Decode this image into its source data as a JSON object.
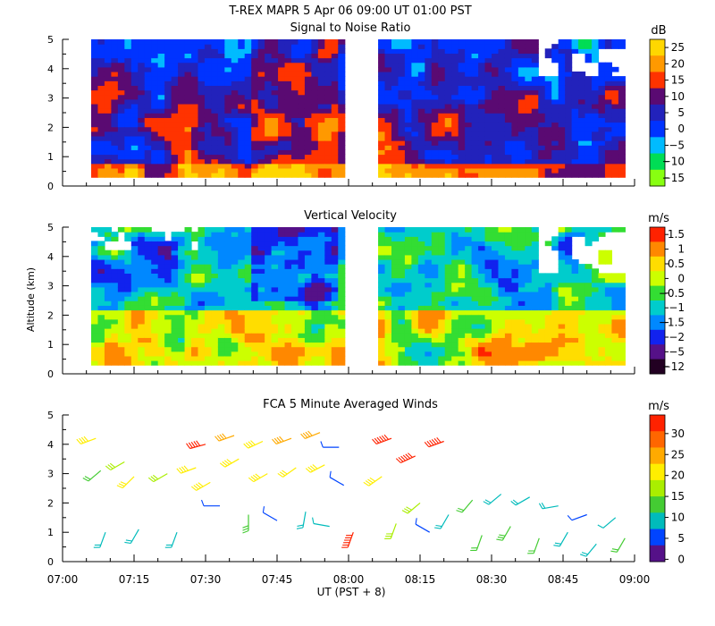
{
  "figure": {
    "title": "T-REX   MAPR   5 Apr 06   09:00 UT   01:00   PST",
    "xlabel": "UT  (PST + 8)",
    "xticks": [
      "07:00",
      "07:15",
      "07:30",
      "07:45",
      "08:00",
      "08:15",
      "08:30",
      "08:45",
      "09:00"
    ]
  },
  "chart_data": [
    {
      "type": "heatmap",
      "title": "Signal to Noise Ratio",
      "ylabel": "",
      "ylim": [
        0,
        5
      ],
      "yticks": [
        "0",
        "1",
        "2",
        "3",
        "4",
        "5"
      ],
      "xlim_minutes": [
        0,
        120
      ],
      "data_gap_minutes": [
        60,
        65
      ],
      "colorbar": {
        "unit": "dB",
        "labels": [
          "25",
          "20",
          "15",
          "10",
          "5",
          "0",
          "−5",
          "−10",
          "−15"
        ],
        "colors": [
          "#ffd700",
          "#ff9900",
          "#ff3300",
          "#5a0a72",
          "#2222bb",
          "#0033ff",
          "#00bbff",
          "#00dd55",
          "#88ff11"
        ]
      }
    },
    {
      "type": "heatmap",
      "title": "Vertical Velocity",
      "ylabel": "Altitude (km)",
      "ylim": [
        0,
        5
      ],
      "yticks": [
        "0",
        "1",
        "2",
        "3",
        "4",
        "5"
      ],
      "xlim_minutes": [
        0,
        120
      ],
      "data_gap_minutes": [
        60,
        65
      ],
      "colorbar": {
        "unit": "m/s",
        "labels": [
          "1.5",
          "1",
          "0.5",
          "0",
          "−0.5",
          "−1",
          "−1.5",
          "−2",
          "−5",
          "−12"
        ],
        "colors": [
          "#ff2200",
          "#ff8800",
          "#ffdd00",
          "#ccff00",
          "#33dd33",
          "#00cccc",
          "#0088ff",
          "#1122ee",
          "#551188",
          "#220022"
        ]
      }
    },
    {
      "type": "scatter",
      "title": "FCA 5 Minute Averaged Winds",
      "ylabel": "",
      "ylim": [
        0,
        5
      ],
      "yticks": [
        "0",
        "1",
        "2",
        "3",
        "4",
        "5"
      ],
      "xlim_minutes": [
        0,
        120
      ],
      "colorbar": {
        "unit": "m/s",
        "labels": [
          "30",
          "25",
          "20",
          "15",
          "10",
          "5",
          "0"
        ],
        "colors": [
          "#ff2200",
          "#ff6600",
          "#ffaa00",
          "#ffee00",
          "#aaee00",
          "#44cc33",
          "#00bbbb",
          "#0044ff",
          "#551188"
        ]
      },
      "wind_barbs": [
        {
          "t": 7,
          "z": 4.2,
          "spd": 19,
          "dir": 250
        },
        {
          "t": 8,
          "z": 3.1,
          "spd": 12,
          "dir": 230
        },
        {
          "t": 9,
          "z": 1.0,
          "spd": 10,
          "dir": 200
        },
        {
          "t": 13,
          "z": 3.4,
          "spd": 14,
          "dir": 240
        },
        {
          "t": 15,
          "z": 2.9,
          "spd": 17,
          "dir": 225
        },
        {
          "t": 16,
          "z": 1.1,
          "spd": 8,
          "dir": 210
        },
        {
          "t": 22,
          "z": 3.0,
          "spd": 15,
          "dir": 240
        },
        {
          "t": 24,
          "z": 1.0,
          "spd": 9,
          "dir": 200
        },
        {
          "t": 28,
          "z": 3.2,
          "spd": 18,
          "dir": 250
        },
        {
          "t": 30,
          "z": 4.0,
          "spd": 27,
          "dir": 255
        },
        {
          "t": 31,
          "z": 2.7,
          "spd": 20,
          "dir": 240
        },
        {
          "t": 33,
          "z": 1.9,
          "spd": 6,
          "dir": 270
        },
        {
          "t": 36,
          "z": 4.3,
          "spd": 21,
          "dir": 250
        },
        {
          "t": 37,
          "z": 3.5,
          "spd": 18,
          "dir": 240
        },
        {
          "t": 39,
          "z": 1.6,
          "spd": 13,
          "dir": 180
        },
        {
          "t": 42,
          "z": 4.1,
          "spd": 20,
          "dir": 245
        },
        {
          "t": 43,
          "z": 3.0,
          "spd": 19,
          "dir": 240
        },
        {
          "t": 45,
          "z": 1.4,
          "spd": 5,
          "dir": 300
        },
        {
          "t": 48,
          "z": 4.2,
          "spd": 21,
          "dir": 250
        },
        {
          "t": 49,
          "z": 3.2,
          "spd": 17,
          "dir": 235
        },
        {
          "t": 51,
          "z": 1.7,
          "spd": 9,
          "dir": 190
        },
        {
          "t": 54,
          "z": 4.4,
          "spd": 22,
          "dir": 248
        },
        {
          "t": 55,
          "z": 3.3,
          "spd": 18,
          "dir": 242
        },
        {
          "t": 56,
          "z": 1.2,
          "spd": 7,
          "dir": 280
        },
        {
          "t": 58,
          "z": 3.9,
          "spd": 5,
          "dir": 270
        },
        {
          "t": 59,
          "z": 2.6,
          "spd": 6,
          "dir": 300
        },
        {
          "t": 61,
          "z": 1.0,
          "spd": 28,
          "dir": 200
        },
        {
          "t": 67,
          "z": 2.9,
          "spd": 18,
          "dir": 235
        },
        {
          "t": 69,
          "z": 4.2,
          "spd": 30,
          "dir": 250
        },
        {
          "t": 70,
          "z": 1.3,
          "spd": 14,
          "dir": 200
        },
        {
          "t": 74,
          "z": 3.6,
          "spd": 28,
          "dir": 245
        },
        {
          "t": 75,
          "z": 2.0,
          "spd": 16,
          "dir": 230
        },
        {
          "t": 77,
          "z": 1.0,
          "spd": 5,
          "dir": 300
        },
        {
          "t": 80,
          "z": 4.1,
          "spd": 29,
          "dir": 250
        },
        {
          "t": 81,
          "z": 1.6,
          "spd": 8,
          "dir": 210
        },
        {
          "t": 86,
          "z": 2.1,
          "spd": 12,
          "dir": 220
        },
        {
          "t": 88,
          "z": 0.9,
          "spd": 11,
          "dir": 200
        },
        {
          "t": 92,
          "z": 2.3,
          "spd": 10,
          "dir": 230
        },
        {
          "t": 94,
          "z": 1.2,
          "spd": 13,
          "dir": 210
        },
        {
          "t": 98,
          "z": 2.2,
          "spd": 9,
          "dir": 240
        },
        {
          "t": 100,
          "z": 0.8,
          "spd": 12,
          "dir": 200
        },
        {
          "t": 104,
          "z": 1.9,
          "spd": 8,
          "dir": 260
        },
        {
          "t": 106,
          "z": 1.0,
          "spd": 10,
          "dir": 210
        },
        {
          "t": 110,
          "z": 1.6,
          "spd": 6,
          "dir": 250
        },
        {
          "t": 112,
          "z": 0.6,
          "spd": 9,
          "dir": 220
        },
        {
          "t": 116,
          "z": 1.5,
          "spd": 7,
          "dir": 230
        },
        {
          "t": 118,
          "z": 0.8,
          "spd": 11,
          "dir": 210
        }
      ]
    }
  ]
}
